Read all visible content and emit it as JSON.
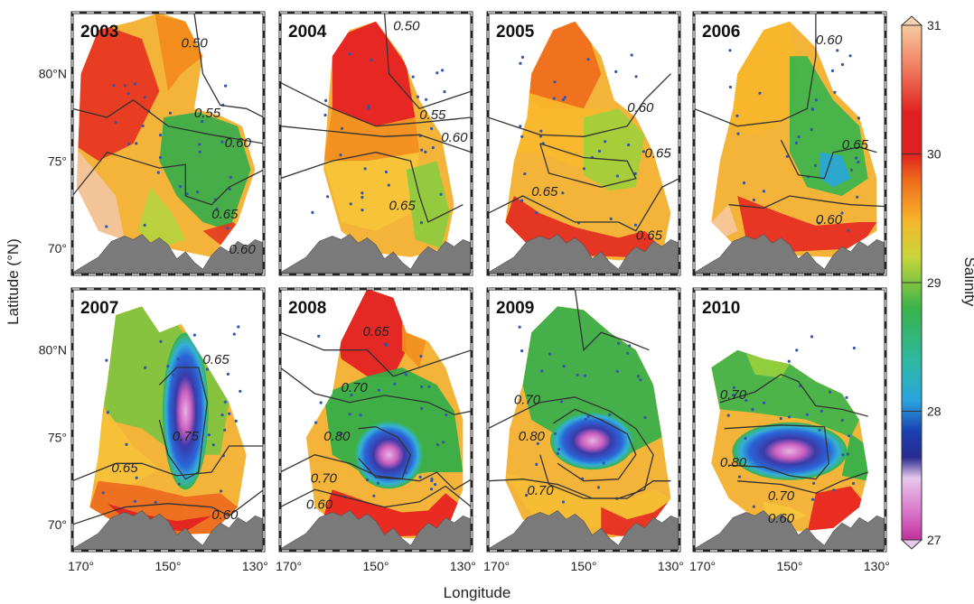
{
  "figure": {
    "x_axis_title": "Longitude",
    "y_axis_title": "Latitude (°N)",
    "x_tick_labels": [
      "170°",
      "150°",
      "130°"
    ],
    "y_tick_labels": [
      "80°N",
      "75°",
      "70°"
    ],
    "colorbar": {
      "title": "Salinity",
      "tick_labels": [
        "31",
        "30",
        "29",
        "28",
        "27"
      ],
      "stops": [
        {
          "value": 31.0,
          "color": "#f7c9a0"
        },
        {
          "value": 30.6,
          "color": "#f08060"
        },
        {
          "value": 30.3,
          "color": "#e02020"
        },
        {
          "value": 30.0,
          "color": "#ef6a1c"
        },
        {
          "value": 29.6,
          "color": "#f6b62a"
        },
        {
          "value": 29.3,
          "color": "#c8d63a"
        },
        {
          "value": 29.0,
          "color": "#39b34a"
        },
        {
          "value": 28.5,
          "color": "#2db8a8"
        },
        {
          "value": 28.0,
          "color": "#2aa3e0"
        },
        {
          "value": 27.8,
          "color": "#1a3fb0"
        },
        {
          "value": 27.5,
          "color": "#e8a8e0"
        },
        {
          "value": 27.0,
          "color": "#c0309a"
        }
      ]
    },
    "colors": {
      "land": "#7a7a7a",
      "station_dot": "#3355aa",
      "contour": "#333333",
      "frame": "#222222"
    },
    "panels": [
      {
        "year": "2003",
        "contour_labels": [
          "0.50",
          "0.55",
          "0.60",
          "0.65",
          "0.60"
        ],
        "regions": [
          {
            "color": "#f6b62a",
            "lon_lat": [
              [
                152,
                83.5
              ],
              [
                145,
                83.5
              ],
              [
                140,
                82.5
              ],
              [
                132,
                81
              ]
            ]
          },
          {
            "color": "#39b34a",
            "lon_lat": [
              [
                147,
                77.5
              ],
              [
                140,
                77.5
              ],
              [
                135,
                76.5
              ],
              [
                136,
                73
              ],
              [
                140,
                72.5
              ],
              [
                146,
                73
              ],
              [
                149,
                75
              ]
            ]
          }
        ]
      },
      {
        "year": "2004",
        "contour_labels": [
          "0.50",
          "0.55",
          "0.60",
          "0.65"
        ]
      },
      {
        "year": "2005",
        "contour_labels": [
          "0.60",
          "0.65",
          "0.65",
          "0.65"
        ]
      },
      {
        "year": "2006",
        "contour_labels": [
          "0.60",
          "0.65",
          "0.60"
        ]
      },
      {
        "year": "2007",
        "contour_labels": [
          "0.65",
          "0.75",
          "0.65",
          "0.60"
        ]
      },
      {
        "year": "2008",
        "contour_labels": [
          "0.65",
          "0.70",
          "0.80",
          "0.70",
          "0.60"
        ]
      },
      {
        "year": "2009",
        "contour_labels": [
          "0.70",
          "0.80",
          "0.70"
        ]
      },
      {
        "year": "2010",
        "contour_labels": [
          "0.70",
          "0.80",
          "0.70",
          "0.60"
        ]
      }
    ]
  }
}
